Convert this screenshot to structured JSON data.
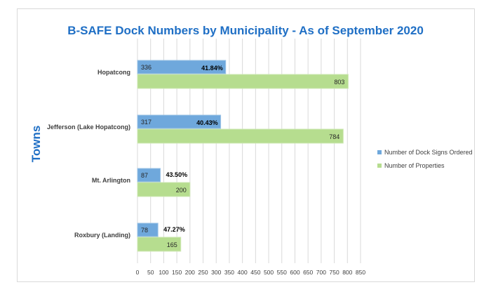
{
  "chart_data": {
    "type": "bar",
    "orientation": "horizontal",
    "title": "B-SAFE Dock Numbers by Municipality - As of September 2020",
    "xlabel": "",
    "ylabel": "Towns",
    "xlim": [
      0,
      850
    ],
    "xticks": [
      0,
      50,
      100,
      150,
      200,
      250,
      300,
      350,
      400,
      450,
      500,
      550,
      600,
      650,
      700,
      750,
      800,
      850
    ],
    "grid": true,
    "legend_position": "right",
    "categories": [
      "Hopatcong",
      "Jefferson (Lake Hopatcong)",
      "Mt. Arlington",
      "Roxbury (Landing)"
    ],
    "series": [
      {
        "name": "Number of Dock Signs Ordered",
        "color": "#6fa8dc",
        "values": [
          336,
          317,
          87,
          78
        ]
      },
      {
        "name": "Number of Properties",
        "color": "#b6dd8f",
        "values": [
          803,
          784,
          200,
          165
        ]
      }
    ],
    "percent_labels": [
      "41.84%",
      "40.43%",
      "43.50%",
      "47.27%"
    ]
  }
}
